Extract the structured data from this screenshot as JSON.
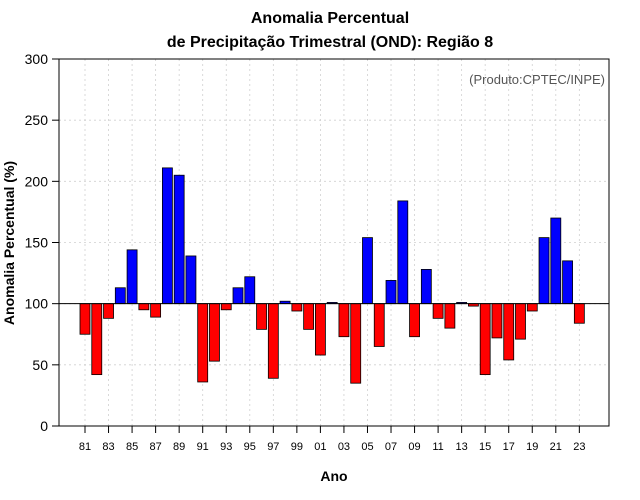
{
  "chart_data": {
    "type": "bar",
    "title": "Anomalia Percentual",
    "subtitle": "de Precipitação Trimestral (OND): Região 8",
    "xlabel": "Ano",
    "ylabel": "Anomalia Percentual (%)",
    "annotation": "(Produto:CPTEC/INPE)",
    "ylim": [
      0,
      300
    ],
    "yticks": [
      0,
      50,
      100,
      150,
      200,
      250,
      300
    ],
    "baseline": 100,
    "grid": true,
    "colors": {
      "above": "#0000ff",
      "below": "#ff0000",
      "baseline": "#000000"
    },
    "categories": [
      "81",
      "82",
      "83",
      "84",
      "85",
      "86",
      "87",
      "88",
      "89",
      "90",
      "91",
      "92",
      "93",
      "94",
      "95",
      "96",
      "97",
      "98",
      "99",
      "00",
      "01",
      "02",
      "03",
      "04",
      "05",
      "06",
      "07",
      "08",
      "09",
      "10",
      "11",
      "12",
      "13",
      "14",
      "15",
      "16",
      "17",
      "18",
      "19",
      "20",
      "21",
      "22",
      "23"
    ],
    "x_tick_labels": [
      "81",
      "83",
      "85",
      "87",
      "89",
      "91",
      "93",
      "95",
      "97",
      "99",
      "01",
      "03",
      "05",
      "07",
      "09",
      "11",
      "13",
      "15",
      "17",
      "19",
      "21",
      "23"
    ],
    "values": [
      75,
      42,
      88,
      113,
      144,
      95,
      89,
      211,
      205,
      139,
      36,
      53,
      95,
      113,
      122,
      79,
      39,
      102,
      94,
      79,
      58,
      101,
      73,
      35,
      154,
      65,
      119,
      184,
      73,
      128,
      88,
      80,
      101,
      98,
      42,
      72,
      54,
      71,
      94,
      154,
      170,
      135,
      84
    ]
  }
}
